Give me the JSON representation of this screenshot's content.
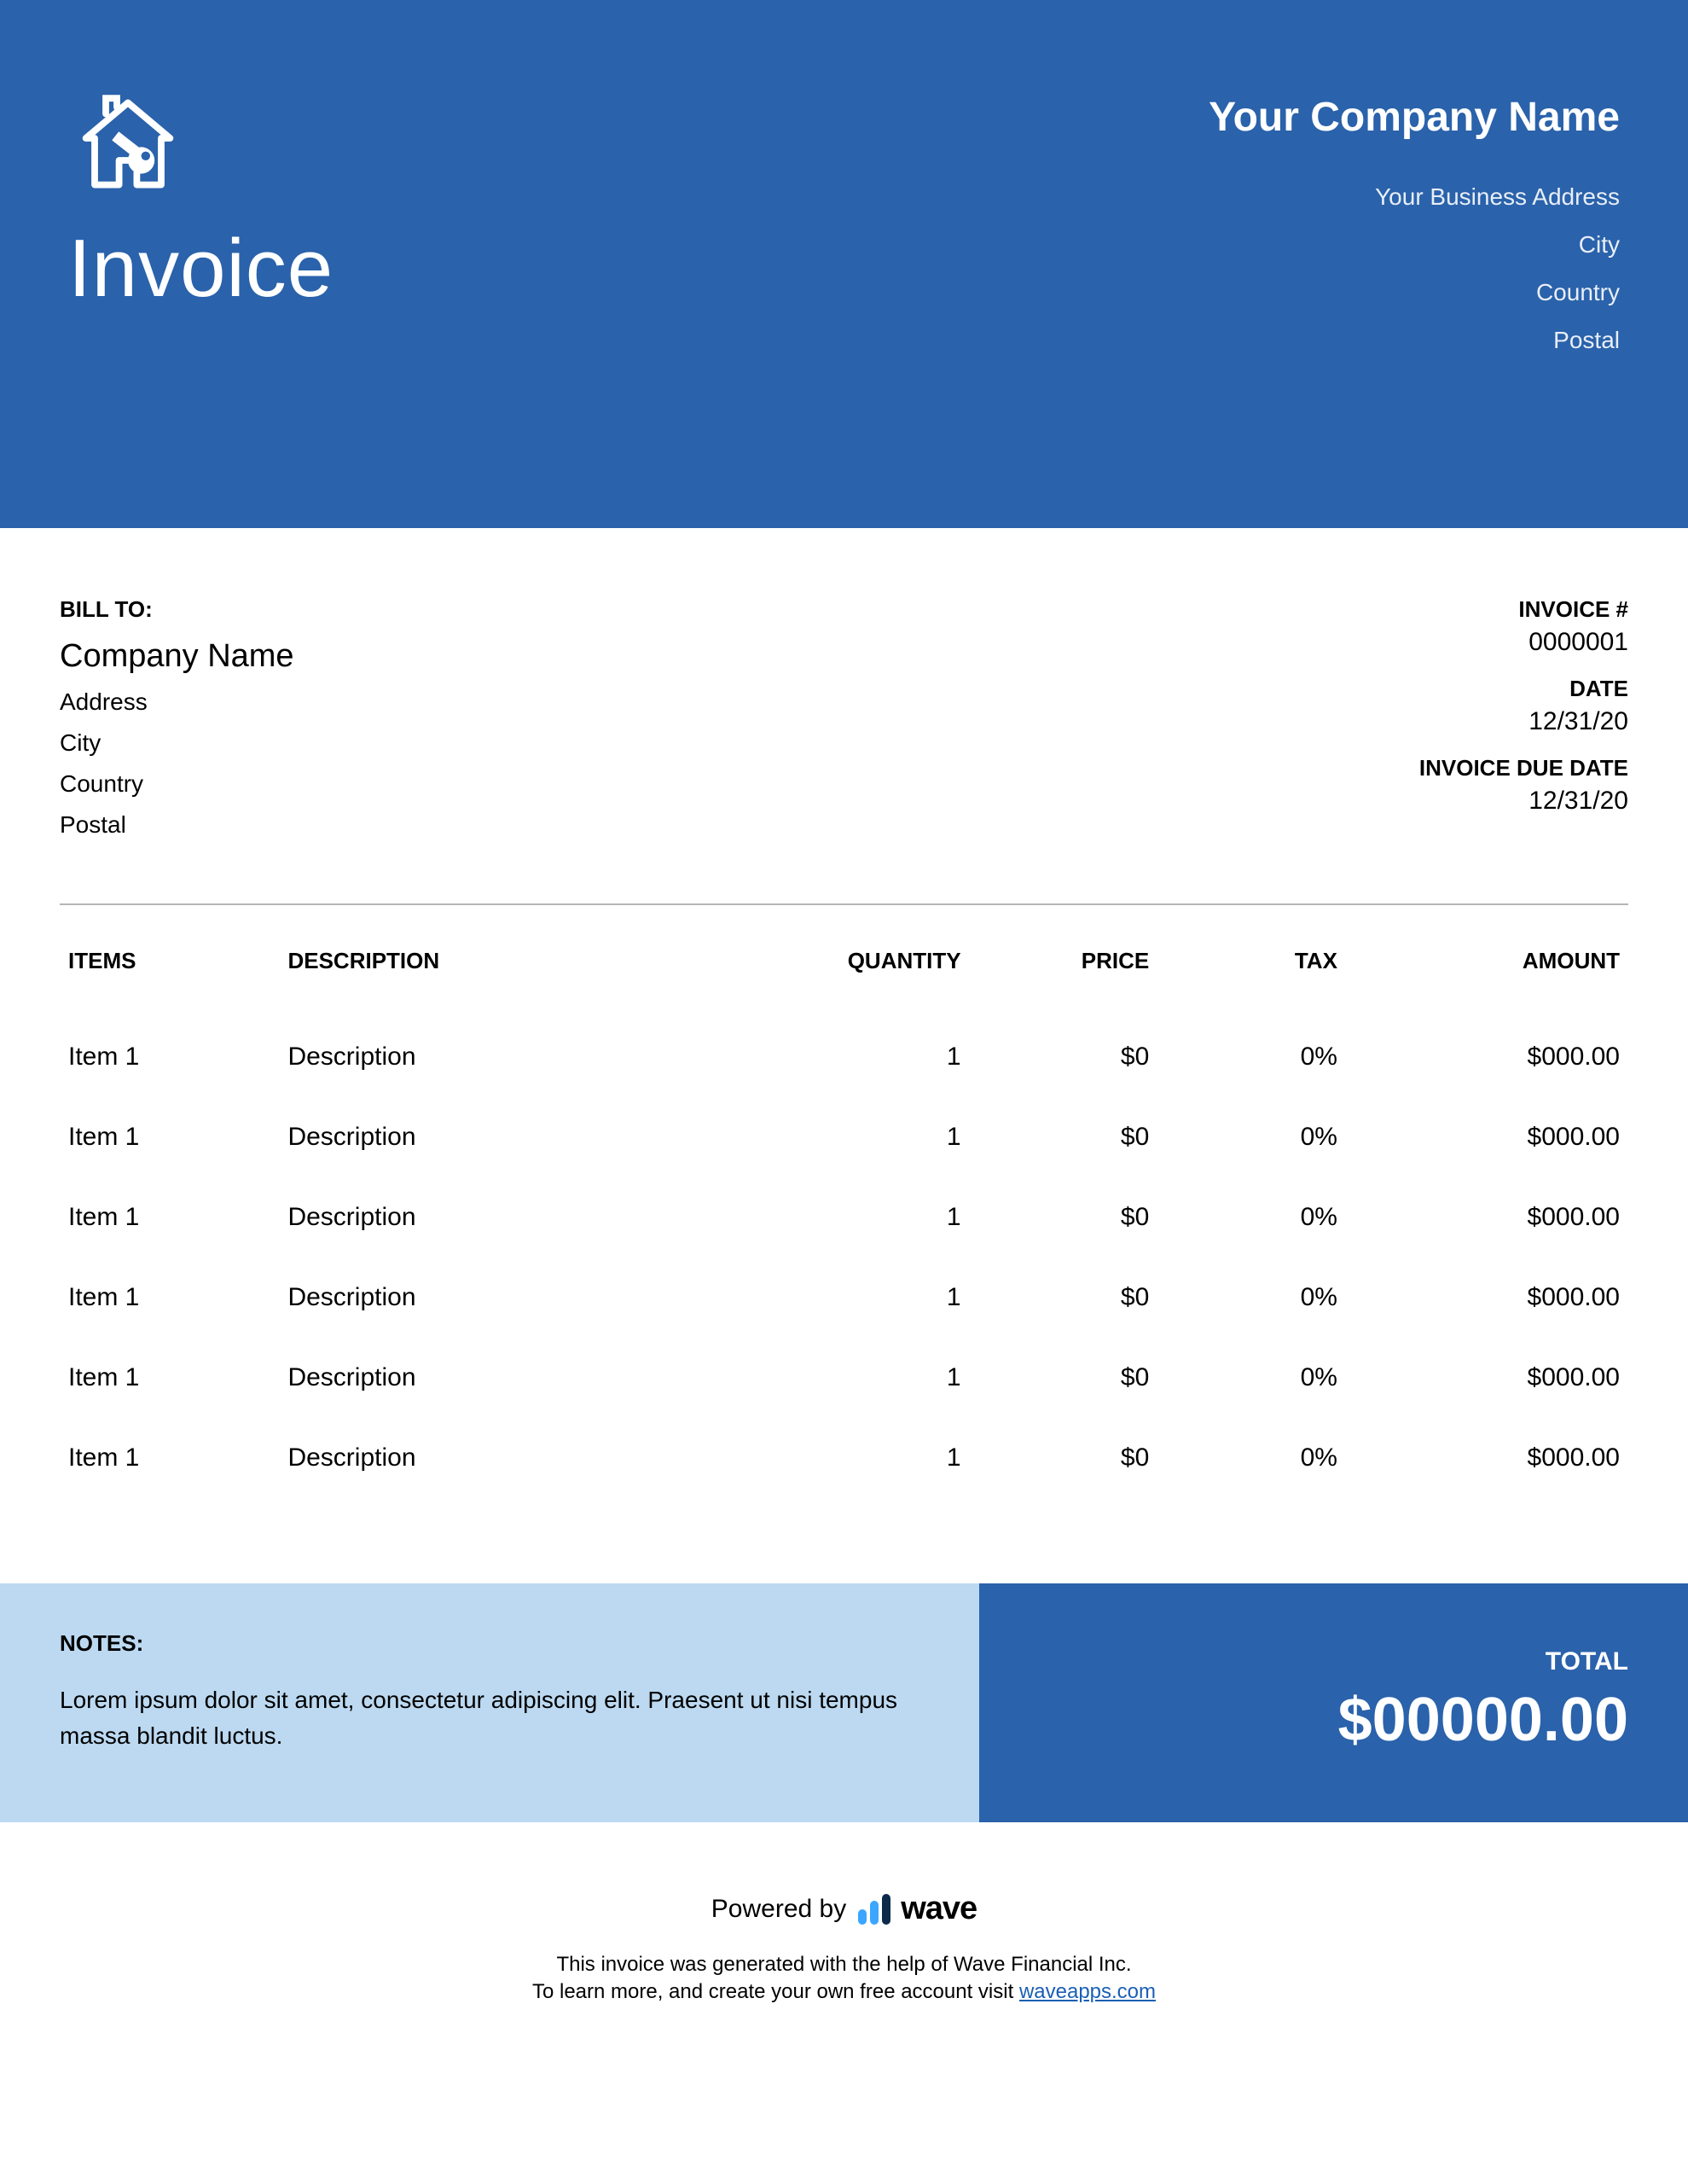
{
  "colors": {
    "brand": "#2a62ab",
    "notes_bg": "#bcd9f1",
    "wave_blue": "#3aa6ff",
    "wave_dark": "#0b2a4a",
    "link": "#1a5fb4"
  },
  "header": {
    "title": "Invoice",
    "company_name": "Your Company Name",
    "address": "Your Business Address",
    "city": "City",
    "country": "Country",
    "postal": "Postal"
  },
  "bill_to": {
    "label": "BILL TO:",
    "company": "Company Name",
    "address": "Address",
    "city": "City",
    "country": "Country",
    "postal": "Postal"
  },
  "invoice_meta": {
    "number_label": "INVOICE #",
    "number": "0000001",
    "date_label": "DATE",
    "date": "12/31/20",
    "due_label": "INVOICE DUE DATE",
    "due": "12/31/20"
  },
  "table": {
    "columns": {
      "items": "ITEMS",
      "description": "DESCRIPTION",
      "quantity": "QUANTITY",
      "price": "PRICE",
      "tax": "TAX",
      "amount": "AMOUNT"
    },
    "rows": [
      {
        "item": "Item 1",
        "description": "Description",
        "quantity": "1",
        "price": "$0",
        "tax": "0%",
        "amount": "$000.00"
      },
      {
        "item": "Item 1",
        "description": "Description",
        "quantity": "1",
        "price": "$0",
        "tax": "0%",
        "amount": "$000.00"
      },
      {
        "item": "Item 1",
        "description": "Description",
        "quantity": "1",
        "price": "$0",
        "tax": "0%",
        "amount": "$000.00"
      },
      {
        "item": "Item 1",
        "description": "Description",
        "quantity": "1",
        "price": "$0",
        "tax": "0%",
        "amount": "$000.00"
      },
      {
        "item": "Item 1",
        "description": "Description",
        "quantity": "1",
        "price": "$0",
        "tax": "0%",
        "amount": "$000.00"
      },
      {
        "item": "Item 1",
        "description": "Description",
        "quantity": "1",
        "price": "$0",
        "tax": "0%",
        "amount": "$000.00"
      }
    ]
  },
  "notes": {
    "label": "NOTES:",
    "text": "Lorem ipsum dolor sit amet, consectetur adipiscing elit. Praesent ut nisi tempus massa blandit luctus."
  },
  "total": {
    "label": "TOTAL",
    "value": "$00000.00"
  },
  "powered": {
    "prefix": "Powered by",
    "brand": "wave",
    "credit1": "This invoice was generated with the help of Wave Financial Inc.",
    "credit2_prefix": "To learn more, and create your own free account visit ",
    "credit2_link": "waveapps.com"
  }
}
